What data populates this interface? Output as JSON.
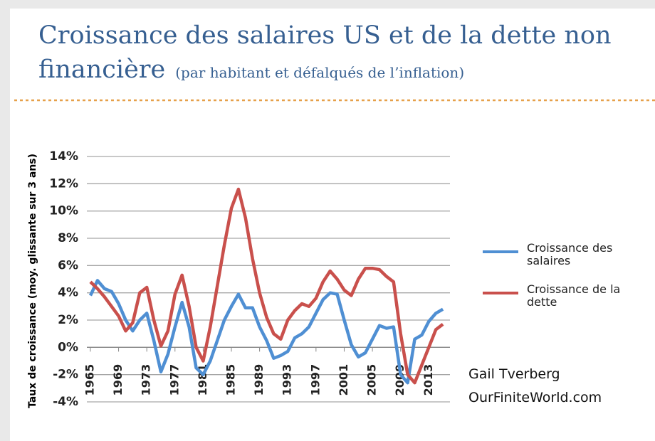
{
  "chart_data": {
    "type": "line",
    "title": "Croissance des salaires US et de la dette non",
    "title_line2": "financière",
    "subtitle": "(par habitant et défalqués de l’inflation)",
    "y_label": "Taux de croissance (moy. glissante sur 3 ans)",
    "annotations": [
      "Gail Tverberg",
      "OurFiniteWorld.com"
    ],
    "x": [
      1965,
      1966,
      1967,
      1968,
      1969,
      1970,
      1971,
      1972,
      1973,
      1974,
      1975,
      1976,
      1977,
      1978,
      1979,
      1980,
      1981,
      1982,
      1983,
      1984,
      1985,
      1986,
      1987,
      1988,
      1989,
      1990,
      1991,
      1992,
      1993,
      1994,
      1995,
      1996,
      1997,
      1998,
      1999,
      2000,
      2001,
      2002,
      2003,
      2004,
      2005,
      2006,
      2007,
      2008,
      2009,
      2010,
      2011,
      2012,
      2013,
      2014,
      2015
    ],
    "xlim": [
      1964.5,
      2016
    ],
    "xticks": [
      1965,
      1969,
      1973,
      1977,
      1981,
      1985,
      1989,
      1993,
      1997,
      2001,
      2005,
      2009,
      2013
    ],
    "ylim": [
      -4,
      14
    ],
    "yticks": [
      {
        "value": -4,
        "label": "-4%"
      },
      {
        "value": -2,
        "label": "-2%"
      },
      {
        "value": 0,
        "label": "0%"
      },
      {
        "value": 2,
        "label": "2%"
      },
      {
        "value": 4,
        "label": "4%"
      },
      {
        "value": 6,
        "label": "6%"
      },
      {
        "value": 8,
        "label": "8%"
      },
      {
        "value": 10,
        "label": "10%"
      },
      {
        "value": 12,
        "label": "12%"
      },
      {
        "value": 14,
        "label": "14%"
      }
    ],
    "grid": true,
    "series": [
      {
        "name": "Croissance des salaires",
        "color": "#4f8fd3",
        "values": [
          3.8,
          4.9,
          4.3,
          4.1,
          3.2,
          2.0,
          1.2,
          2.0,
          2.5,
          0.5,
          -1.8,
          -0.5,
          1.5,
          3.3,
          1.5,
          -1.5,
          -2.0,
          -1.0,
          0.5,
          2.0,
          3.0,
          3.9,
          2.9,
          2.9,
          1.5,
          0.5,
          -0.8,
          -0.6,
          -0.3,
          0.7,
          1.0,
          1.5,
          2.5,
          3.5,
          4.0,
          3.9,
          2.0,
          0.2,
          -0.7,
          -0.4,
          0.6,
          1.6,
          1.4,
          1.5,
          -2.0,
          -2.6,
          0.6,
          0.9,
          1.9,
          2.5,
          2.8
        ]
      },
      {
        "name": "Croissance de la dette",
        "color": "#c9504c",
        "values": [
          4.8,
          4.3,
          3.7,
          3.0,
          2.3,
          1.2,
          1.8,
          4.0,
          4.4,
          2.0,
          0.1,
          1.2,
          3.9,
          5.3,
          3.0,
          0.0,
          -1.0,
          1.5,
          4.5,
          7.5,
          10.2,
          11.6,
          9.5,
          6.5,
          4.0,
          2.2,
          1.0,
          0.6,
          2.0,
          2.7,
          3.2,
          3.0,
          3.6,
          4.8,
          5.6,
          5.0,
          4.2,
          3.8,
          5.0,
          5.8,
          5.8,
          5.7,
          5.2,
          4.8,
          1.0,
          -2.0,
          -2.6,
          -1.3,
          0.0,
          1.3,
          1.7
        ]
      }
    ]
  }
}
